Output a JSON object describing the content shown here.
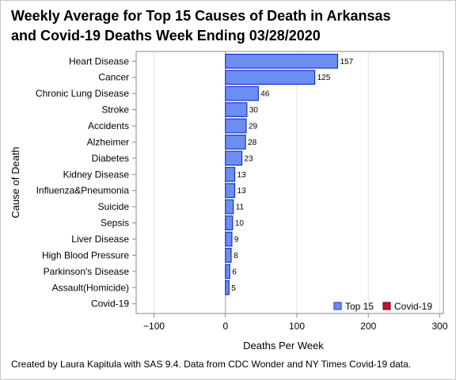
{
  "title_line1": "Weekly Average for Top 15 Causes of Death in Arkansas",
  "title_line2": "and Covid-19 Deaths Week Ending 03/28/2020",
  "footnote": "Created by Laura Kapitula with SAS 9.4. Data from CDC Wonder and NY Times Covid-19 data.",
  "colors": {
    "top15_fill": "#6b8ff0",
    "top15_stroke": "#1a2fd1",
    "covid_fill": "#d0112b",
    "covid_stroke": "#5a0010",
    "grid": "#e4e4e4",
    "axis": "#8a8a8a"
  },
  "chart_data": {
    "type": "bar",
    "orientation": "horizontal",
    "xlabel": "Deaths Per Week",
    "ylabel": "Cause of Death",
    "xlim": [
      -125,
      305
    ],
    "xticks": [
      -100,
      0,
      100,
      200,
      300
    ],
    "grid": true,
    "legend_position": "bottom-right",
    "categories": [
      "Heart Disease",
      "Cancer",
      "Chronic Lung Disease",
      "Stroke",
      "Accidents",
      "Alzheimer",
      "Diabetes",
      "Kidney Disease",
      "Influenza&Pneumonia",
      "Suicide",
      "Sepsis",
      "Liver Disease",
      "High Blood Pressure",
      "Parkinson's Disease",
      "Assault(Homicide)",
      "Covid-19"
    ],
    "series": [
      {
        "name": "Top 15",
        "values": [
          157,
          125,
          46,
          30,
          29,
          28,
          23,
          13,
          13,
          11,
          10,
          9,
          8,
          6,
          5,
          null
        ]
      },
      {
        "name": "Covid-19",
        "values": [
          null,
          null,
          null,
          null,
          null,
          null,
          null,
          null,
          null,
          null,
          null,
          null,
          null,
          null,
          null,
          0
        ]
      }
    ]
  }
}
